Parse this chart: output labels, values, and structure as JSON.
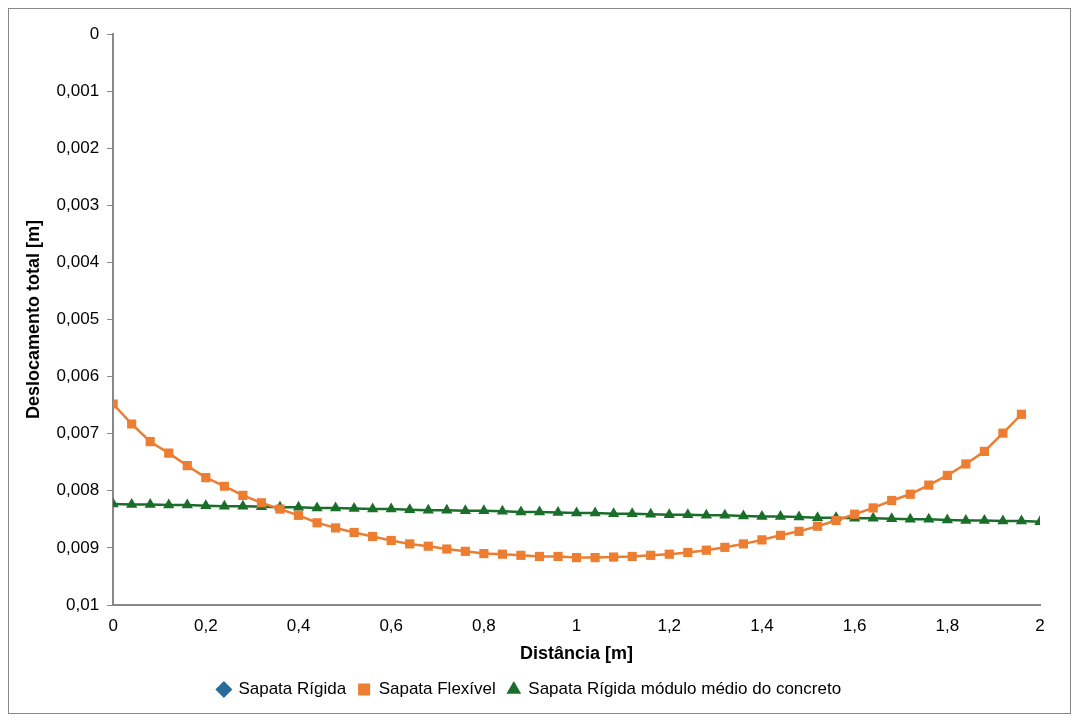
{
  "chart_data": {
    "type": "line",
    "xlabel": "Distância [m]",
    "ylabel": "Deslocamento total [m]",
    "xlim": [
      0,
      2
    ],
    "xticks": [
      0,
      {
        "value": 0.2,
        "label": "0,2"
      },
      {
        "value": 0.4,
        "label": "0,4"
      },
      {
        "value": 0.6,
        "label": "0,6"
      },
      {
        "value": 0.8,
        "label": "0,8"
      },
      1,
      {
        "value": 1.2,
        "label": "1,2"
      },
      {
        "value": 1.4,
        "label": "1,4"
      },
      {
        "value": 1.6,
        "label": "1,6"
      },
      {
        "value": 1.8,
        "label": "1,8"
      },
      2
    ],
    "ylim": [
      0.01,
      0
    ],
    "yticks": [
      0,
      {
        "value": 0.001,
        "label": "0,001"
      },
      {
        "value": 0.002,
        "label": "0,002"
      },
      {
        "value": 0.003,
        "label": "0,003"
      },
      {
        "value": 0.004,
        "label": "0,004"
      },
      {
        "value": 0.005,
        "label": "0,005"
      },
      {
        "value": 0.006,
        "label": "0,006"
      },
      {
        "value": 0.007,
        "label": "0,007"
      },
      {
        "value": 0.008,
        "label": "0,008"
      },
      {
        "value": 0.009,
        "label": "0,009"
      },
      {
        "value": 0.01,
        "label": "0,01"
      }
    ],
    "legend": "bottom",
    "series": [
      {
        "name": "Sapata Rígida",
        "color": "#2a6b9c",
        "marker": "diamond"
      },
      {
        "name": "Sapata Flexível",
        "color": "#ed7d31",
        "marker": "square",
        "x": [
          0,
          0.04,
          0.08,
          0.12,
          0.16,
          0.2,
          0.24,
          0.28,
          0.32,
          0.36,
          0.4,
          0.44,
          0.48,
          0.52,
          0.56,
          0.6,
          0.64,
          0.68,
          0.72,
          0.76,
          0.8,
          0.84,
          0.88,
          0.92,
          0.96,
          1,
          1.04,
          1.08,
          1.12,
          1.16,
          1.2,
          1.24,
          1.28,
          1.32,
          1.36,
          1.4,
          1.44,
          1.48,
          1.52,
          1.56,
          1.6,
          1.64,
          1.68,
          1.72,
          1.76,
          1.8,
          1.84,
          1.88,
          1.92,
          1.96
        ],
        "values": [
          0.00648,
          0.00683,
          0.00714,
          0.00734,
          0.00756,
          0.00777,
          0.00792,
          0.00808,
          0.00821,
          0.00832,
          0.00843,
          0.00856,
          0.00865,
          0.00873,
          0.0088,
          0.00887,
          0.00893,
          0.00897,
          0.00902,
          0.00906,
          0.0091,
          0.00911,
          0.00913,
          0.00915,
          0.00915,
          0.00917,
          0.00917,
          0.00916,
          0.00915,
          0.00913,
          0.00911,
          0.00908,
          0.00904,
          0.00899,
          0.00893,
          0.00886,
          0.00878,
          0.00871,
          0.00862,
          0.00852,
          0.00841,
          0.0083,
          0.00817,
          0.00806,
          0.0079,
          0.00773,
          0.00753,
          0.00731,
          0.00699,
          0.00666
        ]
      },
      {
        "name": "Sapata Rígida módulo médio do concreto",
        "color": "#1a6e2a",
        "marker": "triangle",
        "x": [
          0,
          0.04,
          0.08,
          0.12,
          0.16,
          0.2,
          0.24,
          0.28,
          0.32,
          0.36,
          0.4,
          0.44,
          0.48,
          0.52,
          0.56,
          0.6,
          0.64,
          0.68,
          0.72,
          0.76,
          0.8,
          0.84,
          0.88,
          0.92,
          0.96,
          1,
          1.04,
          1.08,
          1.12,
          1.16,
          1.2,
          1.24,
          1.28,
          1.32,
          1.36,
          1.4,
          1.44,
          1.48,
          1.52,
          1.56,
          1.6,
          1.64,
          1.68,
          1.72,
          1.76,
          1.8,
          1.84,
          1.88,
          1.92,
          1.96,
          2
        ],
        "values": [
          0.00823,
          0.00824,
          0.00824,
          0.00825,
          0.00825,
          0.00826,
          0.00827,
          0.00827,
          0.00828,
          0.00829,
          0.00829,
          0.0083,
          0.0083,
          0.00831,
          0.00832,
          0.00832,
          0.00833,
          0.00834,
          0.00834,
          0.00835,
          0.00835,
          0.00836,
          0.00837,
          0.00837,
          0.00838,
          0.00839,
          0.00839,
          0.0084,
          0.0084,
          0.00841,
          0.00842,
          0.00842,
          0.00843,
          0.00843,
          0.00844,
          0.00845,
          0.00845,
          0.00846,
          0.00847,
          0.00847,
          0.00848,
          0.00848,
          0.00849,
          0.0085,
          0.0085,
          0.00851,
          0.00852,
          0.00852,
          0.00853,
          0.00853,
          0.00854
        ]
      }
    ]
  }
}
